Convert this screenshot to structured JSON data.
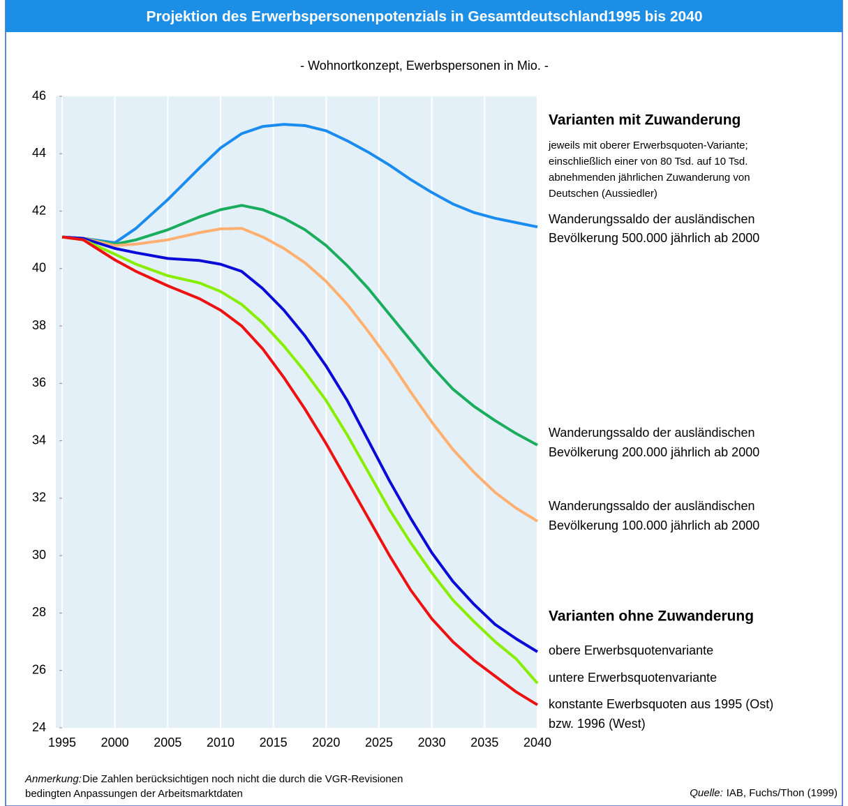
{
  "chart_data": {
    "type": "line",
    "title": "Projektion des Erwerbspersonenpotenzials in Gesamtdeutschland1995 bis 2040",
    "subtitle": "- Wohnortkonzept, Ewerbspersonen in Mio. -",
    "x": [
      1995,
      1997,
      2000,
      2002,
      2005,
      2008,
      2010,
      2012,
      2014,
      2016,
      2018,
      2020,
      2022,
      2024,
      2026,
      2028,
      2030,
      2032,
      2034,
      2036,
      2038,
      2040
    ],
    "xlim": [
      1995,
      2040
    ],
    "xticks": [
      1995,
      2000,
      2005,
      2010,
      2015,
      2020,
      2025,
      2030,
      2035,
      2040
    ],
    "ylim": [
      24,
      46
    ],
    "yticks": [
      24,
      26,
      28,
      30,
      32,
      34,
      36,
      38,
      40,
      42,
      44,
      46
    ],
    "grid": "x",
    "group_headers": [
      "Varianten mit Zuwanderung",
      "Varianten ohne Zuwanderung"
    ],
    "group_note": [
      "jeweils mit oberer Erwerbsquoten-Variante;",
      "einschließlich einer von 80 Tsd. auf 10 Tsd.",
      "abnehmenden jährlichen Zuwanderung von",
      "Deutschen (Aussiedler)"
    ],
    "series": [
      {
        "label": [
          "Wanderungssaldo der ausländischen",
          "Bevölkerung 500.000 jährlich ab 2000"
        ],
        "color": "#1a8cf0",
        "values": [
          41.1,
          41.05,
          40.9,
          41.4,
          42.4,
          43.5,
          44.2,
          44.7,
          44.95,
          45.02,
          44.98,
          44.8,
          44.45,
          44.05,
          43.6,
          43.1,
          42.65,
          42.25,
          41.95,
          41.75,
          41.6,
          41.45
        ]
      },
      {
        "label": [
          "Wanderungssaldo der ausländischen",
          "Bevölkerung 200.000 jährlich ab 2000"
        ],
        "color": "#1aad5e",
        "values": [
          41.1,
          41.05,
          40.85,
          41.0,
          41.35,
          41.8,
          42.05,
          42.2,
          42.05,
          41.75,
          41.35,
          40.8,
          40.1,
          39.3,
          38.4,
          37.5,
          36.6,
          35.8,
          35.2,
          34.7,
          34.25,
          33.85
        ]
      },
      {
        "label": [
          "Wanderungssaldo der ausländischen",
          "Bevölkerung 100.000 jährlich ab 2000"
        ],
        "color": "#ffb070",
        "values": [
          41.1,
          41.05,
          40.8,
          40.85,
          41.0,
          41.25,
          41.38,
          41.4,
          41.1,
          40.7,
          40.2,
          39.55,
          38.75,
          37.8,
          36.8,
          35.7,
          34.65,
          33.7,
          32.9,
          32.2,
          31.65,
          31.2
        ]
      },
      {
        "label": [
          "obere Erwerbsquotenvariante"
        ],
        "color": "#0a0ad8",
        "values": [
          41.1,
          41.05,
          40.7,
          40.55,
          40.35,
          40.28,
          40.15,
          39.9,
          39.3,
          38.55,
          37.65,
          36.6,
          35.4,
          34.0,
          32.6,
          31.3,
          30.1,
          29.1,
          28.3,
          27.6,
          27.1,
          26.65
        ]
      },
      {
        "label": [
          "untere Erwerbsquotenvariante"
        ],
        "color": "#88ee00",
        "values": [
          41.1,
          41.0,
          40.5,
          40.15,
          39.75,
          39.5,
          39.2,
          38.75,
          38.1,
          37.3,
          36.4,
          35.4,
          34.2,
          32.9,
          31.6,
          30.45,
          29.4,
          28.45,
          27.7,
          27.0,
          26.4,
          25.55
        ]
      },
      {
        "label": [
          "konstante Ewerbsquoten aus 1995 (Ost)",
          "bzw. 1996 (West)"
        ],
        "color": "#ee1111",
        "values": [
          41.1,
          41.0,
          40.3,
          39.9,
          39.4,
          38.95,
          38.55,
          38.0,
          37.2,
          36.2,
          35.1,
          33.9,
          32.6,
          31.3,
          30.0,
          28.8,
          27.8,
          27.0,
          26.35,
          25.8,
          25.25,
          24.8
        ]
      }
    ],
    "note_label": "Anmerkung:",
    "note": [
      "Die Zahlen berücksichtigen noch nicht die durch die VGR-Revisionen",
      "bedingten Anpassungen der Arbeitsmarktdaten"
    ],
    "source_label": "Quelle:",
    "source": "IAB, Fuchs/Thon (1999)"
  }
}
